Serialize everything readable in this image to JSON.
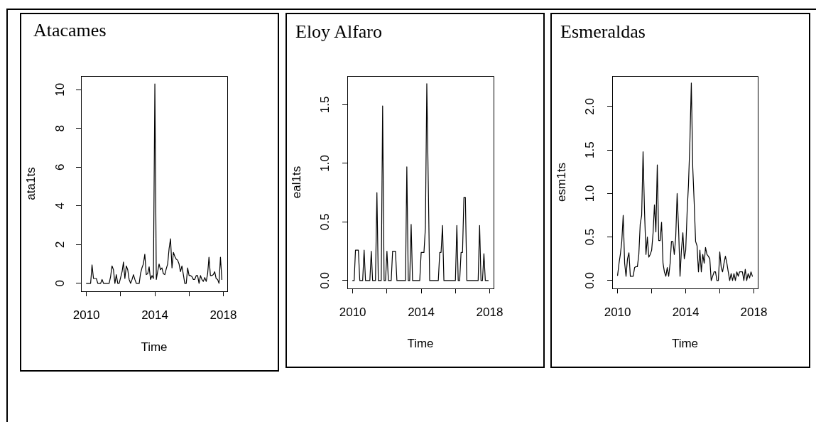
{
  "chart_data": [
    {
      "type": "line",
      "title": "Atacames",
      "xlabel": "Time",
      "ylabel": "ata1ts",
      "x": [
        "2010-01",
        "2010-02",
        "2010-03",
        "2010-04",
        "2010-05",
        "2010-06",
        "2010-07",
        "2010-08",
        "2010-09",
        "2010-10",
        "2010-11",
        "2010-12",
        "2011-01",
        "2011-02",
        "2011-03",
        "2011-04",
        "2011-05",
        "2011-06",
        "2011-07",
        "2011-08",
        "2011-09",
        "2011-10",
        "2011-11",
        "2011-12",
        "2012-01",
        "2012-02",
        "2012-03",
        "2012-04",
        "2012-05",
        "2012-06",
        "2012-07",
        "2012-08",
        "2012-09",
        "2012-10",
        "2012-11",
        "2012-12",
        "2013-01",
        "2013-02",
        "2013-03",
        "2013-04",
        "2013-05",
        "2013-06",
        "2013-07",
        "2013-08",
        "2013-09",
        "2013-10",
        "2013-11",
        "2013-12",
        "2014-01",
        "2014-02",
        "2014-03",
        "2014-04",
        "2014-05",
        "2014-06",
        "2014-07",
        "2014-08",
        "2014-09",
        "2014-10",
        "2014-11",
        "2014-12",
        "2015-01",
        "2015-02",
        "2015-03",
        "2015-04",
        "2015-05",
        "2015-06",
        "2015-07",
        "2015-08",
        "2015-09",
        "2015-10",
        "2015-11",
        "2015-12",
        "2016-01",
        "2016-02",
        "2016-03",
        "2016-04",
        "2016-05",
        "2016-06",
        "2016-07",
        "2016-08",
        "2016-09",
        "2016-10",
        "2016-11",
        "2016-12",
        "2017-01",
        "2017-02",
        "2017-03",
        "2017-04",
        "2017-05",
        "2017-06",
        "2017-07",
        "2017-08",
        "2017-09",
        "2017-10",
        "2017-11",
        "2017-12"
      ],
      "values": [
        0,
        0,
        0,
        0,
        0.95,
        0.25,
        0.25,
        0.25,
        0,
        0,
        0,
        0.2,
        0,
        0,
        0,
        0,
        0,
        0.35,
        0.9,
        0.7,
        0,
        0.45,
        0,
        0,
        0.3,
        0.6,
        1.1,
        0.25,
        0.9,
        0.7,
        0.2,
        0,
        0.2,
        0.45,
        0.2,
        0,
        0,
        0,
        0.5,
        0.8,
        1.0,
        1.5,
        0.45,
        0.5,
        0.85,
        0.2,
        0.4,
        0.25,
        10.3,
        0.2,
        0.6,
        1.0,
        0.7,
        0.8,
        0.5,
        0.45,
        0.75,
        1.0,
        1.8,
        2.3,
        0.8,
        1.6,
        1.4,
        1.25,
        1.2,
        1.0,
        0.6,
        0.9,
        0.45,
        0,
        0,
        0.8,
        0.4,
        0.4,
        0.35,
        0.2,
        0.2,
        0.4,
        0.4,
        0,
        0.4,
        0.2,
        0.1,
        0.3,
        0.1,
        0.5,
        1.35,
        0.4,
        0.4,
        0.45,
        0.6,
        0.25,
        0.2,
        0,
        1.35,
        0.2
      ],
      "color": "#000000",
      "xlim": [
        "2009-09-07",
        "2018-03-26"
      ],
      "xticks": [
        "2010",
        {
          "value": "2012",
          "label": null
        },
        "2014",
        {
          "value": "2016",
          "label": null
        },
        "2018"
      ],
      "ylim": [
        -0.41,
        10.71
      ],
      "yticks": [
        0,
        2,
        4,
        6,
        8,
        10
      ],
      "grid": false,
      "legend": false,
      "marker": "none",
      "line_style": "solid"
    },
    {
      "type": "line",
      "title": "Eloy Alfaro",
      "xlabel": "Time",
      "ylabel": "eal1ts",
      "x": [
        "2010-01",
        "2010-02",
        "2010-03",
        "2010-04",
        "2010-05",
        "2010-06",
        "2010-07",
        "2010-08",
        "2010-09",
        "2010-10",
        "2010-11",
        "2010-12",
        "2011-01",
        "2011-02",
        "2011-03",
        "2011-04",
        "2011-05",
        "2011-06",
        "2011-07",
        "2011-08",
        "2011-09",
        "2011-10",
        "2011-11",
        "2011-12",
        "2012-01",
        "2012-02",
        "2012-03",
        "2012-04",
        "2012-05",
        "2012-06",
        "2012-07",
        "2012-08",
        "2012-09",
        "2012-10",
        "2012-11",
        "2012-12",
        "2013-01",
        "2013-02",
        "2013-03",
        "2013-04",
        "2013-05",
        "2013-06",
        "2013-07",
        "2013-08",
        "2013-09",
        "2013-10",
        "2013-11",
        "2013-12",
        "2014-01",
        "2014-02",
        "2014-03",
        "2014-04",
        "2014-05",
        "2014-06",
        "2014-07",
        "2014-08",
        "2014-09",
        "2014-10",
        "2014-11",
        "2014-12",
        "2015-01",
        "2015-02",
        "2015-03",
        "2015-04",
        "2015-05",
        "2015-06",
        "2015-07",
        "2015-08",
        "2015-09",
        "2015-10",
        "2015-11",
        "2015-12",
        "2016-01",
        "2016-02",
        "2016-03",
        "2016-04",
        "2016-05",
        "2016-06",
        "2016-07",
        "2016-08",
        "2016-09",
        "2016-10",
        "2016-11",
        "2016-12",
        "2017-01",
        "2017-02",
        "2017-03",
        "2017-04",
        "2017-05",
        "2017-06",
        "2017-07",
        "2017-08",
        "2017-09",
        "2017-10",
        "2017-11",
        "2017-12"
      ],
      "values": [
        0,
        0,
        0.26,
        0.26,
        0.26,
        0,
        0,
        0,
        0.26,
        0,
        0,
        0,
        0,
        0.25,
        0,
        0,
        0,
        0.75,
        0,
        0,
        0,
        1.49,
        0,
        0,
        0.25,
        0,
        0,
        0,
        0.25,
        0.25,
        0.25,
        0,
        0,
        0,
        0,
        0,
        0,
        0,
        0.97,
        0,
        0,
        0.48,
        0,
        0,
        0,
        0,
        0,
        0,
        0.24,
        0.24,
        0.24,
        0.45,
        1.68,
        0.84,
        0,
        0,
        0,
        0,
        0,
        0,
        0,
        0.24,
        0.24,
        0.47,
        0,
        0,
        0,
        0,
        0,
        0,
        0,
        0,
        0,
        0.47,
        0,
        0,
        0.24,
        0.24,
        0.71,
        0.71,
        0,
        0,
        0,
        0,
        0,
        0,
        0,
        0,
        0,
        0.47,
        0,
        0,
        0.23,
        0,
        0,
        0
      ],
      "color": "#000000",
      "xlim": [
        "2009-09-07",
        "2018-03-26"
      ],
      "xticks": [
        "2010",
        {
          "value": "2012",
          "label": null
        },
        "2014",
        {
          "value": "2016",
          "label": null
        },
        "2018"
      ],
      "ylim": [
        -0.067,
        1.745
      ],
      "yticks": [
        {
          "value": 0,
          "label": "0.0"
        },
        0.5,
        {
          "value": 1,
          "label": "1.0"
        },
        1.5
      ],
      "grid": false,
      "legend": false,
      "marker": "none",
      "line_style": "solid"
    },
    {
      "type": "line",
      "title": "Esmeraldas",
      "xlabel": "Time",
      "ylabel": "esm1ts",
      "x": [
        "2010-01",
        "2010-02",
        "2010-03",
        "2010-04",
        "2010-05",
        "2010-06",
        "2010-07",
        "2010-08",
        "2010-09",
        "2010-10",
        "2010-11",
        "2010-12",
        "2011-01",
        "2011-02",
        "2011-03",
        "2011-04",
        "2011-05",
        "2011-06",
        "2011-07",
        "2011-08",
        "2011-09",
        "2011-10",
        "2011-11",
        "2011-12",
        "2012-01",
        "2012-02",
        "2012-03",
        "2012-04",
        "2012-05",
        "2012-06",
        "2012-07",
        "2012-08",
        "2012-09",
        "2012-10",
        "2012-11",
        "2012-12",
        "2013-01",
        "2013-02",
        "2013-03",
        "2013-04",
        "2013-05",
        "2013-06",
        "2013-07",
        "2013-08",
        "2013-09",
        "2013-10",
        "2013-11",
        "2013-12",
        "2014-01",
        "2014-02",
        "2014-03",
        "2014-04",
        "2014-05",
        "2014-06",
        "2014-07",
        "2014-08",
        "2014-09",
        "2014-10",
        "2014-11",
        "2014-12",
        "2015-01",
        "2015-02",
        "2015-03",
        "2015-04",
        "2015-05",
        "2015-06",
        "2015-07",
        "2015-08",
        "2015-09",
        "2015-10",
        "2015-11",
        "2015-12",
        "2016-01",
        "2016-02",
        "2016-03",
        "2016-04",
        "2016-05",
        "2016-06",
        "2016-07",
        "2016-08",
        "2016-09",
        "2016-10",
        "2016-11",
        "2016-12",
        "2017-01",
        "2017-02",
        "2017-03",
        "2017-04",
        "2017-05",
        "2017-06",
        "2017-07",
        "2017-08",
        "2017-09",
        "2017-10",
        "2017-11",
        "2017-12"
      ],
      "values": [
        0.06,
        0.2,
        0.3,
        0.45,
        0.75,
        0.2,
        0.05,
        0.25,
        0.32,
        0.05,
        0.05,
        0.05,
        0.15,
        0.16,
        0.16,
        0.3,
        0.65,
        0.75,
        1.48,
        0.8,
        0.3,
        0.5,
        0.27,
        0.3,
        0.35,
        0.55,
        0.87,
        0.56,
        1.33,
        0.46,
        0.46,
        0.67,
        0.2,
        0.1,
        0.05,
        0.15,
        0.05,
        0.2,
        0.45,
        0.45,
        0.3,
        0.5,
        1.0,
        0.6,
        0.05,
        0.35,
        0.55,
        0.25,
        0.35,
        0.8,
        1.1,
        1.6,
        2.27,
        1.3,
        0.9,
        0.45,
        0.4,
        0.1,
        0.35,
        0.1,
        0.3,
        0.2,
        0.38,
        0.3,
        0.28,
        0.25,
        0,
        0.05,
        0.1,
        0.1,
        0,
        0,
        0.33,
        0.15,
        0.1,
        0.2,
        0.28,
        0.2,
        0.1,
        0,
        0.08,
        0,
        0.08,
        0,
        0.1,
        0.05,
        0.1,
        0.1,
        0.1,
        0,
        0.13,
        0,
        0.08,
        0.03,
        0.1,
        0.05
      ],
      "color": "#000000",
      "xlim": [
        "2009-09-07",
        "2018-03-26"
      ],
      "xticks": [
        "2010",
        {
          "value": "2012",
          "label": null
        },
        "2014",
        {
          "value": "2016",
          "label": null
        },
        "2018"
      ],
      "ylim": [
        -0.09,
        2.35
      ],
      "yticks": [
        {
          "value": 0,
          "label": "0.0"
        },
        0.5,
        {
          "value": 1,
          "label": "1.0"
        },
        1.5,
        {
          "value": 2,
          "label": "2.0"
        }
      ],
      "grid": false,
      "legend": false,
      "marker": "none",
      "line_style": "solid"
    }
  ]
}
